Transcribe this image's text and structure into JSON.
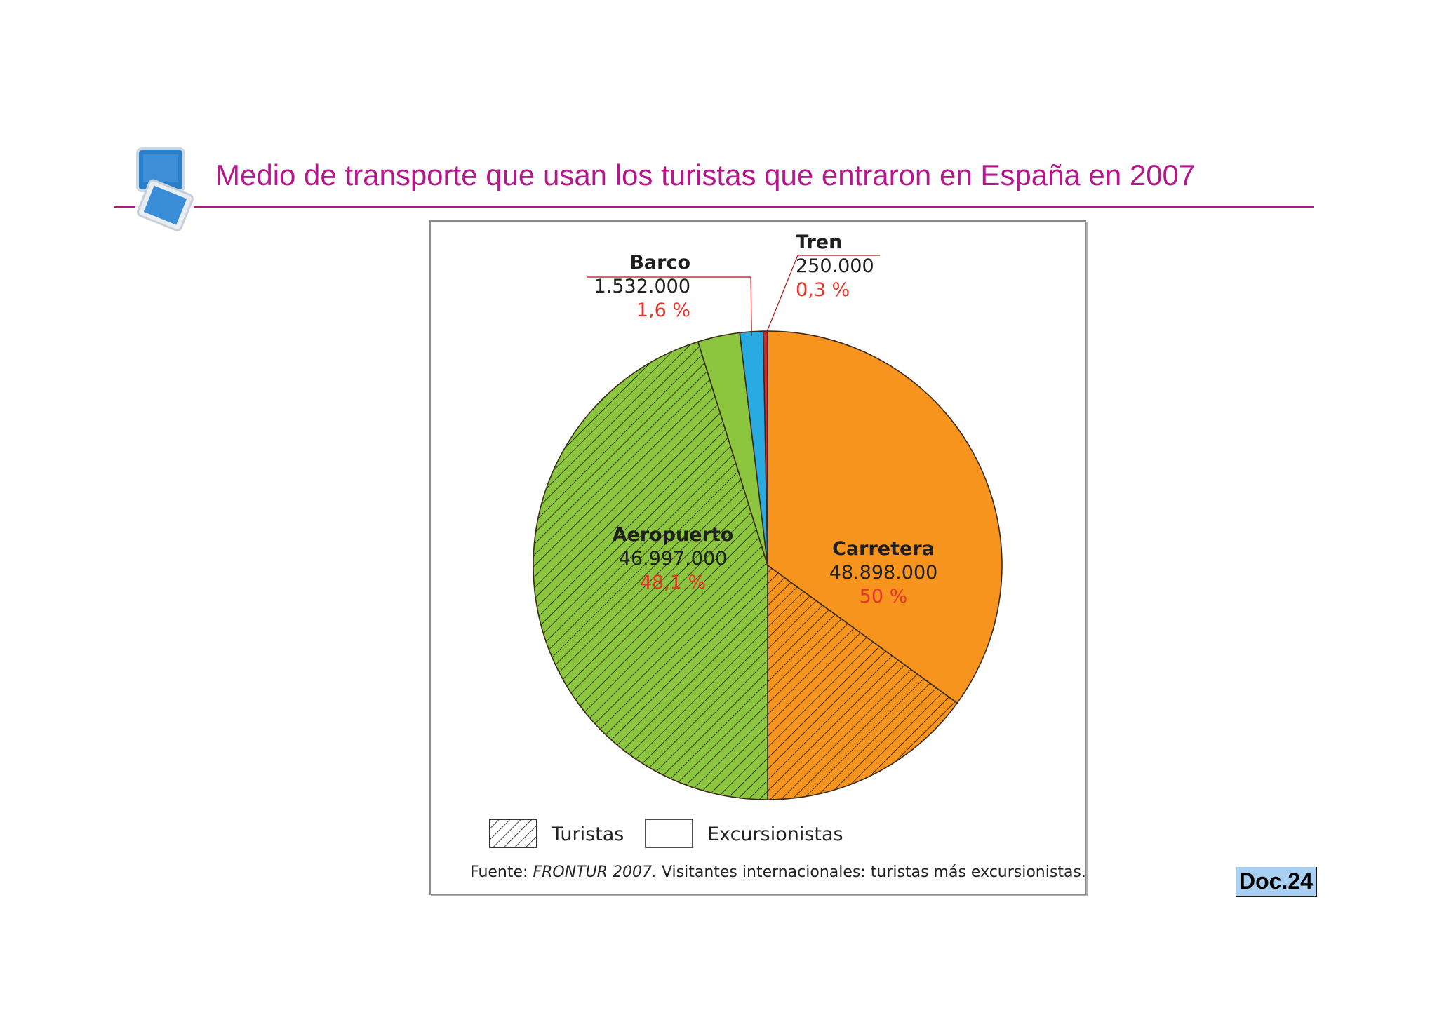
{
  "title": "Medio de transporte que usan los turistas que entraron en España en 2007",
  "doc_label": "Doc.24",
  "source": {
    "prefix": "Fuente: ",
    "name": "FRONTUR 2007.",
    "rest": " Visitantes internacionales: turistas más excursionistas."
  },
  "colors": {
    "title": "#b5178b",
    "percent_text": "#e8352b",
    "outline": "#3a2a1a"
  },
  "chart_data": {
    "type": "pie",
    "start_angle_deg": 0,
    "direction": "clockwise",
    "subsplit_pattern": "hatched diagonal lines = Turistas; plain = Excursionistas",
    "slices": [
      {
        "name": "Carretera",
        "value_label": "48.898.000",
        "value": 48898000,
        "percent_label": "50 %",
        "percent": 50,
        "color": "#f7941d",
        "split": [
          {
            "legend": "Excursionistas",
            "percent": 35,
            "hatched": false
          },
          {
            "legend": "Turistas",
            "percent": 15,
            "hatched": true
          }
        ]
      },
      {
        "name": "Aeropuerto",
        "value_label": "46.997.000",
        "value": 46997000,
        "percent_label": "48,1 %",
        "percent": 48.1,
        "color": "#8cc63f",
        "split": [
          {
            "legend": "Turistas",
            "percent": 45.2,
            "hatched": true
          },
          {
            "legend": "Excursionistas",
            "percent": 2.9,
            "hatched": false
          }
        ]
      },
      {
        "name": "Barco",
        "value_label": "1.532.000",
        "value": 1532000,
        "percent_label": "1,6 %",
        "percent": 1.6,
        "color": "#29abe2"
      },
      {
        "name": "Tren",
        "value_label": "250.000",
        "value": 250000,
        "percent_label": "0,3 %",
        "percent": 0.3,
        "color": "#d7252b"
      }
    ],
    "legend": [
      {
        "label": "Turistas",
        "pattern": "hatched"
      },
      {
        "label": "Excursionistas",
        "pattern": "plain"
      }
    ],
    "legend_position": "bottom-left"
  }
}
